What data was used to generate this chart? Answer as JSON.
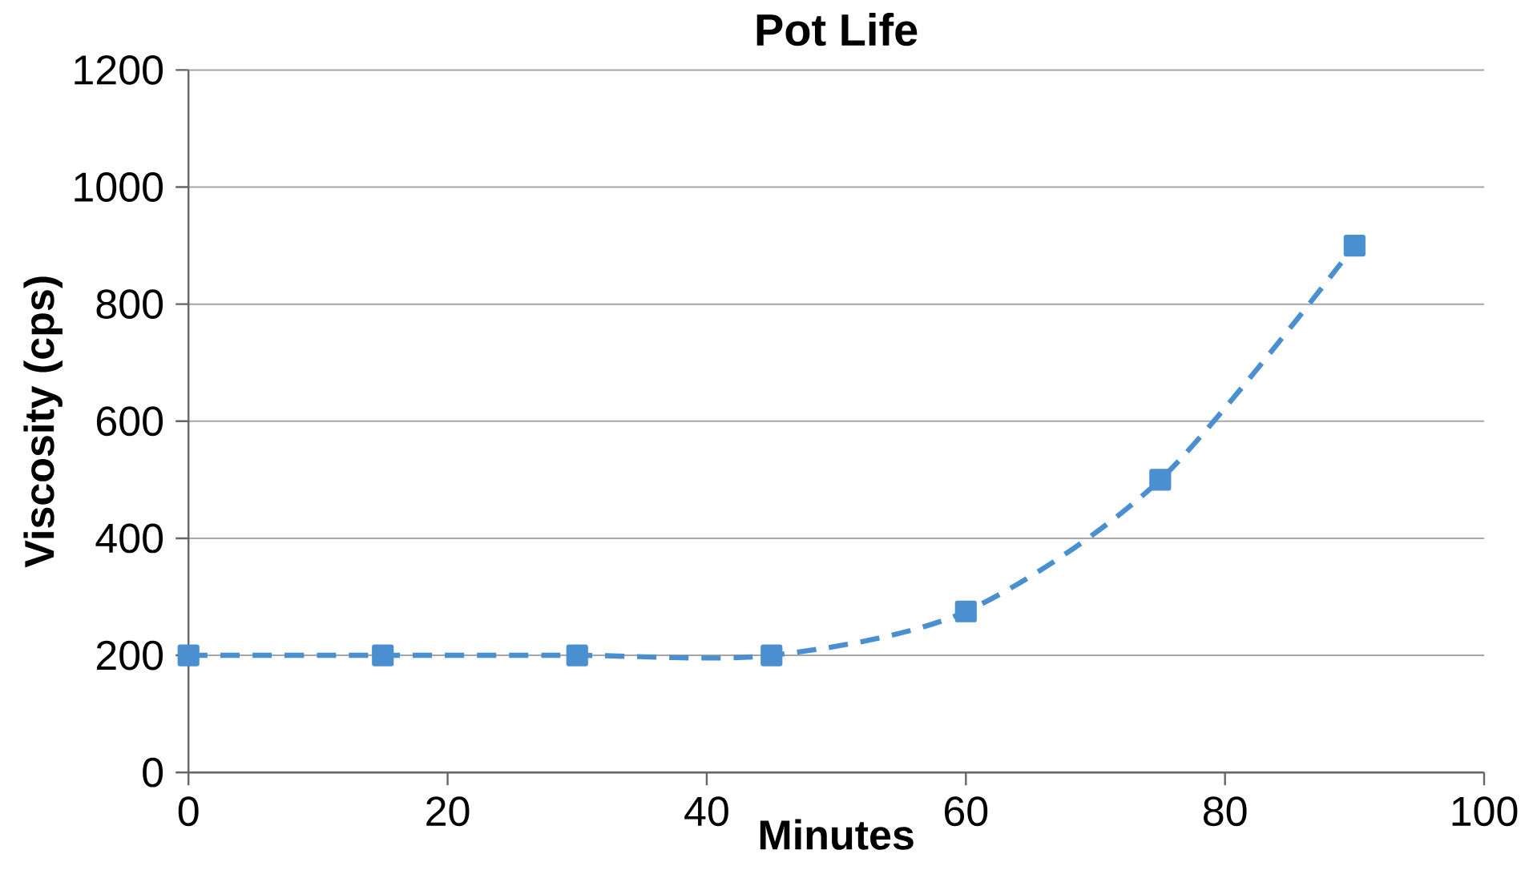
{
  "chart_data": {
    "type": "line",
    "title": "Pot Life",
    "xlabel": "Minutes",
    "ylabel": "Viscosity (cps)",
    "x": [
      0,
      15,
      30,
      45,
      60,
      75,
      90
    ],
    "series": [
      {
        "color": "#4a90d0",
        "values": [
          200,
          200,
          200,
          200,
          275,
          500,
          900
        ]
      }
    ],
    "xlim": [
      0,
      100
    ],
    "xticks": [
      0,
      20,
      40,
      60,
      80,
      100
    ],
    "ylim": [
      0,
      1200
    ],
    "yticks": [
      0,
      200,
      400,
      600,
      800,
      1000,
      1200
    ],
    "grid": "y",
    "marker": "square",
    "line_style": "dashed"
  }
}
